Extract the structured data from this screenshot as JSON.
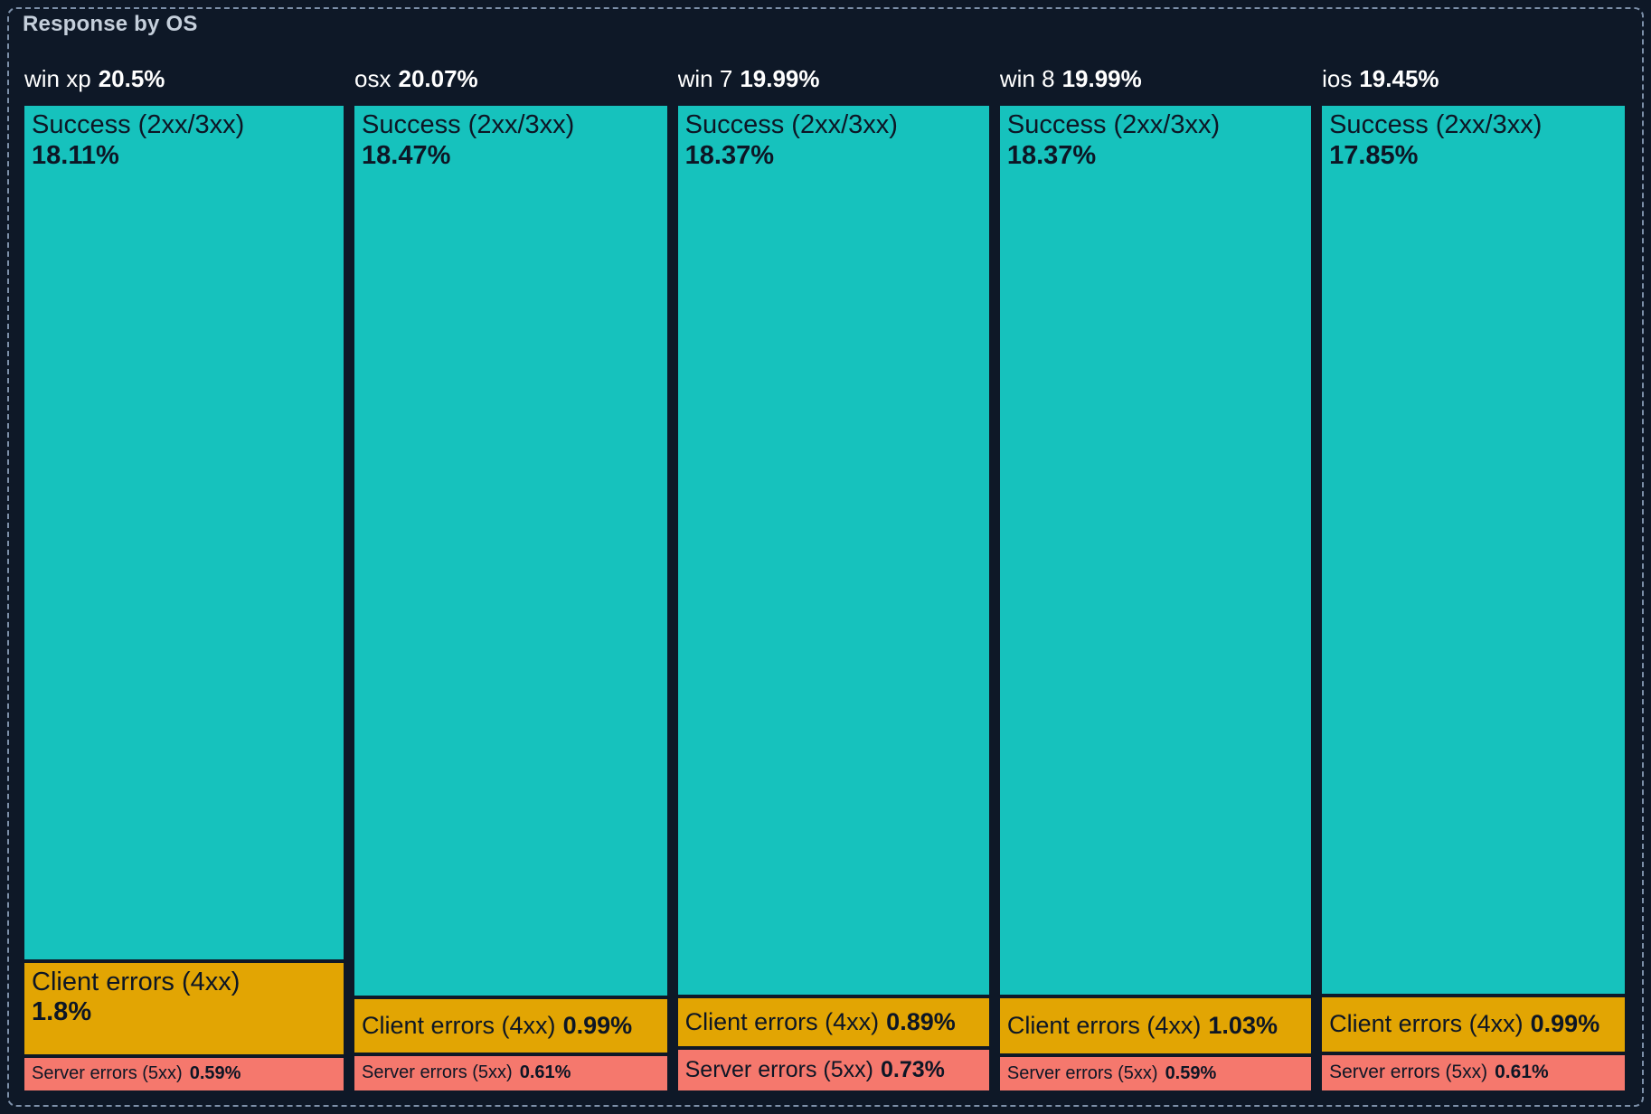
{
  "panel": {
    "title": "Response by OS",
    "colors": {
      "background": "#0E1827",
      "border": "#7D90A9",
      "title_text": "#C5CFDB",
      "header_text": "#FFFFFF",
      "segment_text": "#0D1625",
      "success": "#16C2BD",
      "client": "#E2A503",
      "server": "#F5786D"
    }
  },
  "chart_data": {
    "type": "treemap",
    "title": "Response by OS",
    "layout_hint": "5 columns; column width proportional to OS total share; segment height proportional to value within column; no legend; dark panel with dashed border",
    "categories": [
      "win xp",
      "osx",
      "win 7",
      "win 8",
      "ios"
    ],
    "series_labels": [
      "Success (2xx/3xx)",
      "Client errors (4xx)",
      "Server errors (5xx)"
    ],
    "columns": [
      {
        "os": "win xp",
        "total_label": "20.5%",
        "total": 20.5,
        "segments": [
          {
            "kind": "success",
            "label": "Success (2xx/3xx)",
            "pct": "18.11%",
            "value": 18.11,
            "two_line": true
          },
          {
            "kind": "client",
            "label": "Client errors (4xx)",
            "pct": "1.8%",
            "value": 1.8,
            "two_line": true
          },
          {
            "kind": "server",
            "label": "Server errors (5xx)",
            "pct": "0.59%",
            "value": 0.59,
            "two_line": false
          }
        ]
      },
      {
        "os": "osx",
        "total_label": "20.07%",
        "total": 20.07,
        "segments": [
          {
            "kind": "success",
            "label": "Success (2xx/3xx)",
            "pct": "18.47%",
            "value": 18.47,
            "two_line": true
          },
          {
            "kind": "client",
            "label": "Client errors (4xx)",
            "pct": "0.99%",
            "value": 0.99,
            "two_line": false
          },
          {
            "kind": "server",
            "label": "Server errors (5xx)",
            "pct": "0.61%",
            "value": 0.61,
            "two_line": false
          }
        ]
      },
      {
        "os": "win 7",
        "total_label": "19.99%",
        "total": 19.99,
        "segments": [
          {
            "kind": "success",
            "label": "Success (2xx/3xx)",
            "pct": "18.37%",
            "value": 18.37,
            "two_line": true
          },
          {
            "kind": "client",
            "label": "Client errors (4xx)",
            "pct": "0.89%",
            "value": 0.89,
            "two_line": false
          },
          {
            "kind": "server",
            "label": "Server errors (5xx)",
            "pct": "0.73%",
            "value": 0.73,
            "two_line": false
          }
        ]
      },
      {
        "os": "win 8",
        "total_label": "19.99%",
        "total": 19.99,
        "segments": [
          {
            "kind": "success",
            "label": "Success (2xx/3xx)",
            "pct": "18.37%",
            "value": 18.37,
            "two_line": true
          },
          {
            "kind": "client",
            "label": "Client errors (4xx)",
            "pct": "1.03%",
            "value": 1.03,
            "two_line": false
          },
          {
            "kind": "server",
            "label": "Server errors (5xx)",
            "pct": "0.59%",
            "value": 0.59,
            "two_line": false
          }
        ]
      },
      {
        "os": "ios",
        "total_label": "19.45%",
        "total": 19.45,
        "segments": [
          {
            "kind": "success",
            "label": "Success (2xx/3xx)",
            "pct": "17.85%",
            "value": 17.85,
            "two_line": true
          },
          {
            "kind": "client",
            "label": "Client errors (4xx)",
            "pct": "0.99%",
            "value": 0.99,
            "two_line": false
          },
          {
            "kind": "server",
            "label": "Server errors (5xx)",
            "pct": "0.61%",
            "value": 0.61,
            "two_line": false
          }
        ]
      }
    ]
  }
}
